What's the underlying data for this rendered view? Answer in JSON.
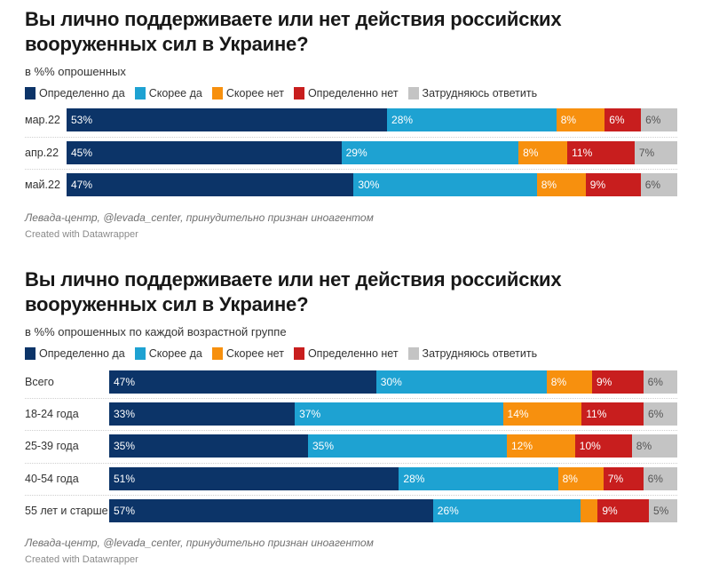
{
  "colors": {
    "definitely_yes": "#0c3468",
    "rather_yes": "#1ea2d2",
    "rather_no": "#f7900e",
    "definitely_no": "#c81e1e",
    "hard_to_say": "#c4c4c4"
  },
  "legend": [
    {
      "key": "definitely_yes",
      "label": "Определенно да"
    },
    {
      "key": "rather_yes",
      "label": "Скорее да"
    },
    {
      "key": "rather_no",
      "label": "Скорее нет"
    },
    {
      "key": "definitely_no",
      "label": "Определенно нет"
    },
    {
      "key": "hard_to_say",
      "label": "Затрудняюсь ответить"
    }
  ],
  "chart_data": [
    {
      "type": "bar",
      "orientation": "horizontal-stacked-100",
      "title": "Вы лично поддерживаете или нет действия российских вооруженных сил в Украине?",
      "subtitle": "в %% опрошенных",
      "categories": [
        "мар.22",
        "апр.22",
        "май.22"
      ],
      "series": [
        {
          "name": "Определенно да",
          "key": "definitely_yes",
          "values": [
            53,
            45,
            47
          ]
        },
        {
          "name": "Скорее да",
          "key": "rather_yes",
          "values": [
            28,
            29,
            30
          ]
        },
        {
          "name": "Скорее нет",
          "key": "rather_no",
          "values": [
            8,
            8,
            8
          ]
        },
        {
          "name": "Определенно нет",
          "key": "definitely_no",
          "values": [
            6,
            11,
            9
          ]
        },
        {
          "name": "Затрудняюсь ответить",
          "key": "hard_to_say",
          "values": [
            6,
            7,
            6
          ]
        }
      ],
      "value_labels_visible": [
        [
          true,
          true,
          true,
          true,
          true
        ],
        [
          true,
          true,
          true,
          true,
          true
        ],
        [
          true,
          true,
          true,
          true,
          true
        ]
      ],
      "xlim": [
        0,
        100
      ],
      "legend_position": "top-left",
      "source": "Левада-центр, @levada_center, принудительно признан иноагентом",
      "credit": "Created with Datawrapper"
    },
    {
      "type": "bar",
      "orientation": "horizontal-stacked-100",
      "title": "Вы лично поддерживаете или нет действия российских вооруженных сил в Украине?",
      "subtitle": "в %% опрошенных по каждой возрастной группе",
      "categories": [
        "Всего",
        "18-24 года",
        "25-39 года",
        "40-54 года",
        "55 лет и старше"
      ],
      "series": [
        {
          "name": "Определенно да",
          "key": "definitely_yes",
          "values": [
            47,
            33,
            35,
            51,
            57
          ]
        },
        {
          "name": "Скорее да",
          "key": "rather_yes",
          "values": [
            30,
            37,
            35,
            28,
            26
          ]
        },
        {
          "name": "Скорее нет",
          "key": "rather_no",
          "values": [
            8,
            14,
            12,
            8,
            3
          ]
        },
        {
          "name": "Определенно нет",
          "key": "definitely_no",
          "values": [
            9,
            11,
            10,
            7,
            9
          ]
        },
        {
          "name": "Затрудняюсь ответить",
          "key": "hard_to_say",
          "values": [
            6,
            6,
            8,
            6,
            5
          ]
        }
      ],
      "value_labels_visible": [
        [
          true,
          true,
          true,
          true,
          true
        ],
        [
          true,
          true,
          true,
          true,
          true
        ],
        [
          true,
          true,
          true,
          true,
          true
        ],
        [
          true,
          true,
          true,
          true,
          true
        ],
        [
          true,
          true,
          false,
          true,
          true
        ]
      ],
      "xlim": [
        0,
        100
      ],
      "legend_position": "top-left",
      "source": "Левада-центр, @levada_center, принудительно признан иноагентом",
      "credit": "Created with Datawrapper"
    }
  ]
}
